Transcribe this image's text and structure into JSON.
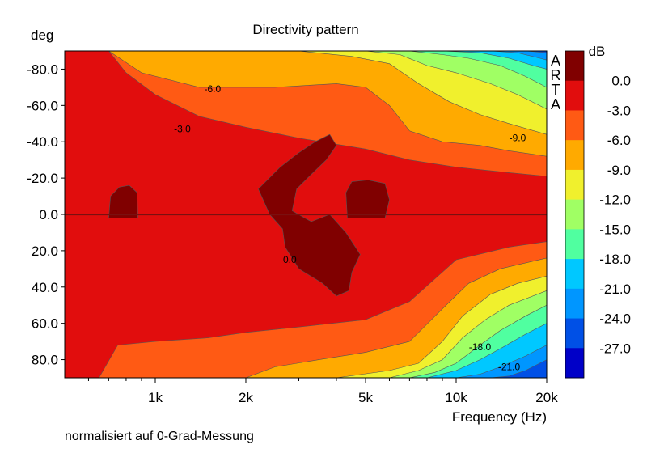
{
  "chart_data": {
    "type": "heatmap",
    "title": "Directivity pattern",
    "xlabel": "Frequency (Hz)",
    "ylabel": "deg",
    "x_scale": "log",
    "xlim": [
      500,
      20000
    ],
    "ylim": [
      -90,
      90
    ],
    "x_ticks": [
      {
        "value": 1000,
        "label": "1k"
      },
      {
        "value": 2000,
        "label": "2k"
      },
      {
        "value": 5000,
        "label": "5k"
      },
      {
        "value": 10000,
        "label": "10k"
      },
      {
        "value": 20000,
        "label": "20k"
      }
    ],
    "y_ticks": [
      {
        "value": -80,
        "label": "-80.0"
      },
      {
        "value": -60,
        "label": "-60.0"
      },
      {
        "value": -40,
        "label": "-40.0"
      },
      {
        "value": -20,
        "label": "-20.0"
      },
      {
        "value": 0,
        "label": "0.0"
      },
      {
        "value": 20,
        "label": "20.0"
      },
      {
        "value": 40,
        "label": "40.0"
      },
      {
        "value": 60,
        "label": "60.0"
      },
      {
        "value": 80,
        "label": "80.0"
      }
    ],
    "colorbar": {
      "unit": "dB",
      "levels": [
        "0.0",
        "-3.0",
        "-6.0",
        "-9.0",
        "-12.0",
        "-15.0",
        "-18.0",
        "-21.0",
        "-24.0",
        "-27.0"
      ],
      "colors": [
        "#800000",
        "#e10d0d",
        "#ff5a14",
        "#ffaa00",
        "#f0f02d",
        "#a0ff64",
        "#50ffa0",
        "#00c8ff",
        "#0096ff",
        "#0050e6",
        "#0000c8"
      ]
    },
    "contour_labels": [
      {
        "text": "-6.0",
        "freq": 1550,
        "angle": -69
      },
      {
        "text": "-3.0",
        "freq": 1230,
        "angle": -47
      },
      {
        "text": "-9.0",
        "freq": 16000,
        "angle": -42
      },
      {
        "text": "0.0",
        "freq": 2800,
        "angle": 25
      },
      {
        "text": "-18.0",
        "freq": 12000,
        "angle": 73
      },
      {
        "text": "-21.0",
        "freq": 15000,
        "angle": 84
      }
    ],
    "contours": {
      "minus3": {
        "top": [
          [
            500,
            -90
          ],
          [
            700,
            -90
          ],
          [
            800,
            -78
          ],
          [
            1000,
            -66
          ],
          [
            1400,
            -54
          ],
          [
            2000,
            -48
          ],
          [
            3000,
            -42
          ],
          [
            5000,
            -36
          ],
          [
            7000,
            -30
          ],
          [
            10000,
            -26
          ],
          [
            15000,
            -23
          ],
          [
            20000,
            -21
          ]
        ],
        "bottom": [
          [
            500,
            90
          ],
          [
            650,
            90
          ],
          [
            750,
            72
          ],
          [
            1000,
            70
          ],
          [
            1500,
            68
          ],
          [
            2000,
            65
          ],
          [
            3000,
            62
          ],
          [
            5000,
            58
          ],
          [
            7000,
            48
          ],
          [
            10000,
            25
          ],
          [
            15000,
            18
          ],
          [
            20000,
            15
          ]
        ]
      },
      "minus6": {
        "top": [
          [
            700,
            -90
          ],
          [
            900,
            -78
          ],
          [
            1400,
            -70
          ],
          [
            2500,
            -70
          ],
          [
            4000,
            -72
          ],
          [
            5000,
            -70
          ],
          [
            6000,
            -60
          ],
          [
            7000,
            -46
          ],
          [
            9000,
            -40
          ],
          [
            12000,
            -38
          ],
          [
            15000,
            -35
          ],
          [
            20000,
            -32
          ]
        ],
        "bottom": [
          [
            2000,
            90
          ],
          [
            2500,
            84
          ],
          [
            3500,
            80
          ],
          [
            5000,
            76
          ],
          [
            7000,
            70
          ],
          [
            9000,
            52
          ],
          [
            11000,
            38
          ],
          [
            14000,
            30
          ],
          [
            20000,
            24
          ]
        ]
      },
      "minus9": {
        "top": [
          [
            800,
            -90
          ],
          [
            3000,
            -90
          ],
          [
            4500,
            -87
          ],
          [
            6000,
            -83
          ],
          [
            7500,
            -72
          ],
          [
            9500,
            -62
          ],
          [
            12000,
            -55
          ],
          [
            15000,
            -50
          ],
          [
            20000,
            -44
          ]
        ],
        "bottom": [
          [
            4000,
            90
          ],
          [
            6000,
            86
          ],
          [
            7500,
            82
          ],
          [
            9000,
            70
          ],
          [
            10500,
            56
          ],
          [
            13000,
            44
          ],
          [
            16000,
            38
          ],
          [
            20000,
            34
          ]
        ]
      },
      "minus12": {
        "top": [
          [
            5000,
            -90
          ],
          [
            6500,
            -88
          ],
          [
            8000,
            -82
          ],
          [
            10000,
            -78
          ],
          [
            13000,
            -72
          ],
          [
            16000,
            -66
          ],
          [
            20000,
            -58
          ]
        ],
        "bottom": [
          [
            6000,
            90
          ],
          [
            7500,
            86
          ],
          [
            9000,
            80
          ],
          [
            10500,
            68
          ],
          [
            12500,
            58
          ],
          [
            15000,
            50
          ],
          [
            20000,
            42
          ]
        ]
      },
      "minus15": {
        "top": [
          [
            7000,
            -90
          ],
          [
            9000,
            -88
          ],
          [
            11000,
            -86
          ],
          [
            14000,
            -82
          ],
          [
            17000,
            -76
          ],
          [
            20000,
            -70
          ]
        ],
        "bottom": [
          [
            7000,
            90
          ],
          [
            8500,
            87
          ],
          [
            10000,
            82
          ],
          [
            12000,
            72
          ],
          [
            14000,
            64
          ],
          [
            17000,
            56
          ],
          [
            20000,
            50
          ]
        ]
      },
      "minus18": {
        "top": [
          [
            9000,
            -90
          ],
          [
            12000,
            -89
          ],
          [
            15000,
            -86
          ],
          [
            18000,
            -82
          ],
          [
            20000,
            -80
          ]
        ],
        "bottom": [
          [
            8000,
            90
          ],
          [
            10000,
            86
          ],
          [
            12000,
            80
          ],
          [
            14000,
            74
          ],
          [
            17000,
            66
          ],
          [
            20000,
            60
          ]
        ]
      },
      "minus21": {
        "top": [
          [
            13000,
            -90
          ],
          [
            16000,
            -89
          ],
          [
            19000,
            -86
          ],
          [
            20000,
            -85
          ]
        ],
        "bottom": [
          [
            10000,
            90
          ],
          [
            12000,
            88
          ],
          [
            14000,
            84
          ],
          [
            17000,
            78
          ],
          [
            20000,
            72
          ]
        ]
      },
      "minus24": {
        "top": [
          [
            17000,
            -90
          ],
          [
            20000,
            -89
          ]
        ],
        "bottom": [
          [
            13000,
            90
          ],
          [
            15000,
            89
          ],
          [
            17000,
            86
          ],
          [
            20000,
            80
          ]
        ]
      }
    },
    "peak_regions": [
      [
        [
          2400,
          0
        ],
        [
          2200,
          -14
        ],
        [
          2600,
          -26
        ],
        [
          3000,
          -34
        ],
        [
          3400,
          -40
        ],
        [
          3800,
          -44
        ],
        [
          4000,
          -38
        ],
        [
          3700,
          -30
        ],
        [
          3300,
          -22
        ],
        [
          2950,
          -14
        ],
        [
          2850,
          -2
        ],
        [
          3300,
          4
        ],
        [
          3800,
          0
        ],
        [
          4300,
          10
        ],
        [
          4800,
          22
        ],
        [
          4500,
          32
        ],
        [
          4400,
          42
        ],
        [
          4000,
          45
        ],
        [
          3600,
          38
        ],
        [
          3000,
          30
        ],
        [
          2700,
          18
        ],
        [
          2650,
          8
        ]
      ],
      [
        [
          4350,
          2
        ],
        [
          4300,
          -12
        ],
        [
          4500,
          -18
        ],
        [
          5100,
          -19
        ],
        [
          5800,
          -17
        ],
        [
          6000,
          -8
        ],
        [
          5800,
          2
        ],
        [
          5000,
          2
        ]
      ],
      [
        [
          700,
          2
        ],
        [
          710,
          -10
        ],
        [
          760,
          -15
        ],
        [
          820,
          -16
        ],
        [
          870,
          -12
        ],
        [
          875,
          2
        ],
        [
          800,
          2
        ]
      ]
    ]
  },
  "brand": [
    "A",
    "R",
    "T",
    "A"
  ],
  "footnote": "normalisiert auf 0-Grad-Messung"
}
